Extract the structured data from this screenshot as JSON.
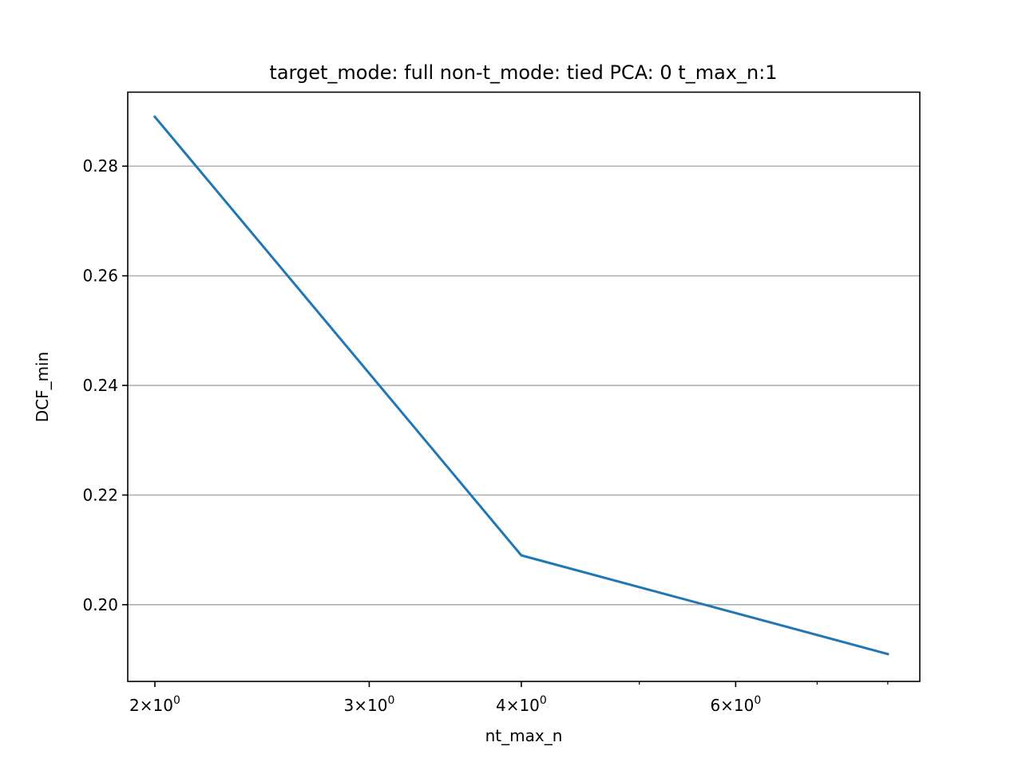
{
  "chart_data": {
    "type": "line",
    "title": "target_mode: full non-t_mode: tied PCA: 0 t_max_n:1",
    "xlabel": "nt_max_n",
    "ylabel": "DCF_min",
    "xscale": "log",
    "xlim": [
      1.9,
      8.5
    ],
    "ylim": [
      0.186,
      0.2935
    ],
    "grid": "y-major",
    "x_major_ticks": [
      {
        "value": 2,
        "mantissa": "2",
        "base": "10",
        "exp": "0"
      },
      {
        "value": 3,
        "mantissa": "3",
        "base": "10",
        "exp": "0"
      },
      {
        "value": 4,
        "mantissa": "4",
        "base": "10",
        "exp": "0"
      },
      {
        "value": 6,
        "mantissa": "6",
        "base": "10",
        "exp": "0"
      }
    ],
    "x_minor_ticks": [
      5,
      7,
      8
    ],
    "y_ticks": [
      {
        "value": 0.2,
        "label": "0.20"
      },
      {
        "value": 0.22,
        "label": "0.22"
      },
      {
        "value": 0.24,
        "label": "0.24"
      },
      {
        "value": 0.26,
        "label": "0.26"
      },
      {
        "value": 0.28,
        "label": "0.28"
      }
    ],
    "series": [
      {
        "color": "#1f77b4",
        "x": [
          2,
          4,
          8
        ],
        "values": [
          0.289,
          0.209,
          0.191
        ]
      }
    ]
  }
}
